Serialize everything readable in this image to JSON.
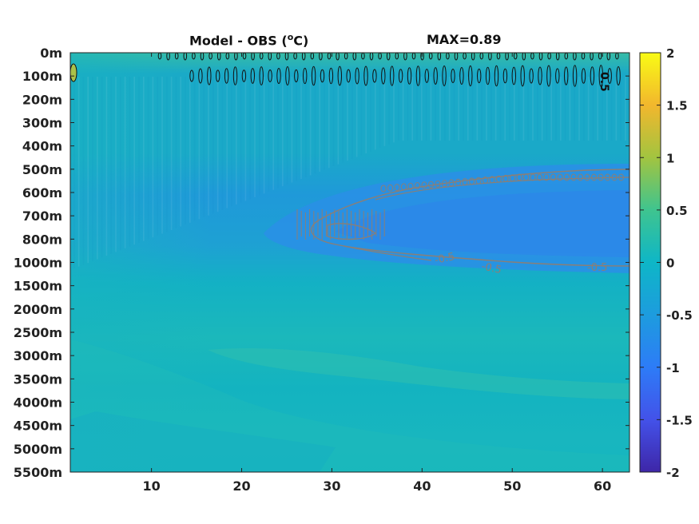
{
  "chart_data": {
    "type": "heatmap",
    "title_prefix": "Model - OBS (",
    "title_unit_sup": "o",
    "title_suffix": "C)",
    "title_max": "MAX=0.89",
    "x_ticks": [
      10,
      20,
      30,
      40,
      50,
      60
    ],
    "x_range": [
      1,
      63
    ],
    "y_tick_labels": [
      "0m",
      "100m",
      "200m",
      "300m",
      "400m",
      "500m",
      "600m",
      "700m",
      "800m",
      "1000m",
      "1500m",
      "2000m",
      "2500m",
      "3000m",
      "3500m",
      "4000m",
      "4500m",
      "5000m",
      "5500m"
    ],
    "colorbar": {
      "range": [
        -2,
        2
      ],
      "tick_labels": [
        "2",
        "1.5",
        "1",
        "0.5",
        "0",
        "-0.5",
        "-1",
        "-1.5",
        "-2"
      ],
      "colormap": "parula"
    },
    "contour_labels": [
      "0.5",
      "-0.5",
      "-0.5",
      "-0.5"
    ],
    "max_value": 0.89
  }
}
